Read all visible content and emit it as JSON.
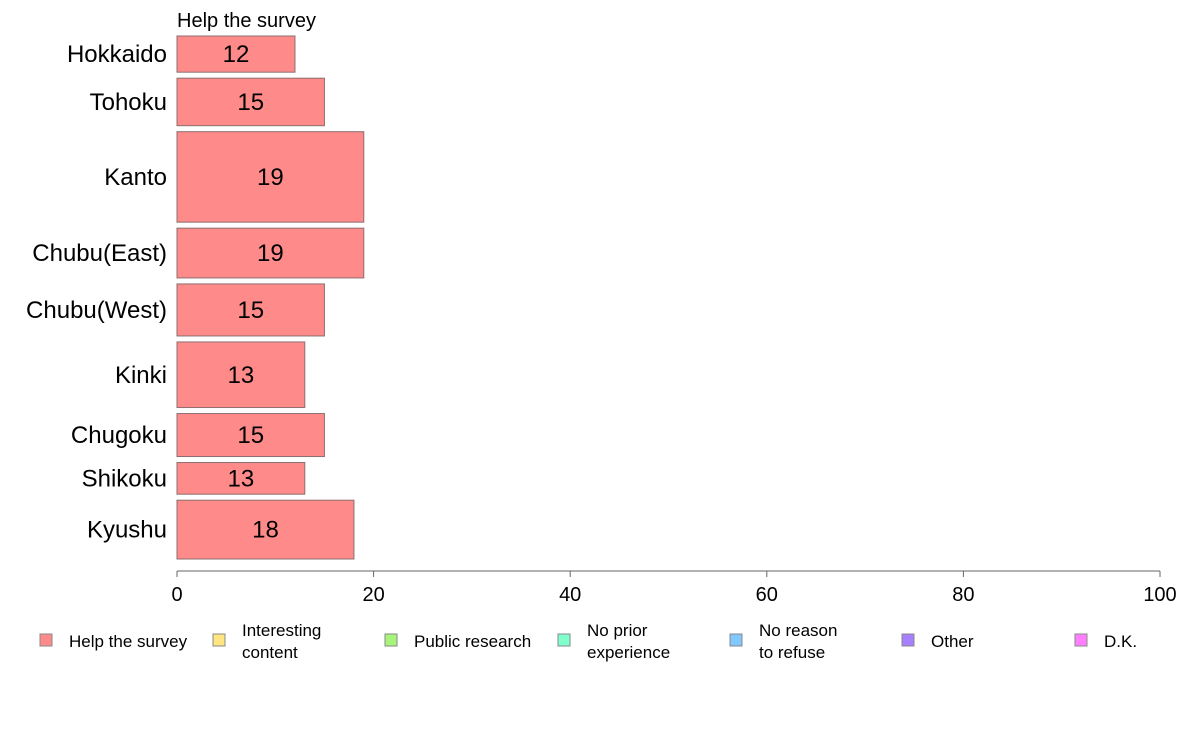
{
  "chart_data": {
    "type": "bar",
    "orientation": "horizontal",
    "panel_title": "Help the survey",
    "categories": [
      "Hokkaido",
      "Tohoku",
      "Kanto",
      "Chubu(East)",
      "Chubu(West)",
      "Kinki",
      "Chugoku",
      "Shikoku",
      "Kyushu"
    ],
    "category_weights": [
      0.8,
      1.05,
      2.0,
      1.1,
      1.15,
      1.45,
      0.95,
      0.7,
      1.3
    ],
    "series": [
      {
        "name": "Help the survey",
        "color": "#ff8a8a",
        "values": [
          12,
          15,
          19,
          19,
          15,
          13,
          15,
          13,
          18
        ],
        "labels": [
          "12",
          "15",
          "19",
          "19",
          "15",
          "13",
          "15",
          "13",
          "18"
        ]
      }
    ],
    "xlim": [
      0,
      100
    ],
    "xticks": [
      0,
      20,
      40,
      60,
      80,
      100
    ],
    "xtick_labels": [
      "0",
      "20",
      "40",
      "60",
      "80",
      "100"
    ],
    "grid": false,
    "legend_position": "bottom",
    "legend": [
      {
        "lines": [
          "Help the survey"
        ],
        "color": "#ff8a8a"
      },
      {
        "lines": [
          "Interesting",
          "content"
        ],
        "color": "#ffe680"
      },
      {
        "lines": [
          "Public research"
        ],
        "color": "#a6f57a"
      },
      {
        "lines": [
          "No prior",
          "experience"
        ],
        "color": "#80ffcc"
      },
      {
        "lines": [
          "No reason",
          "to refuse"
        ],
        "color": "#80c8ff"
      },
      {
        "lines": [
          "Other"
        ],
        "color": "#a680ff"
      },
      {
        "lines": [
          "D.K."
        ],
        "color": "#ff80ff"
      }
    ]
  }
}
